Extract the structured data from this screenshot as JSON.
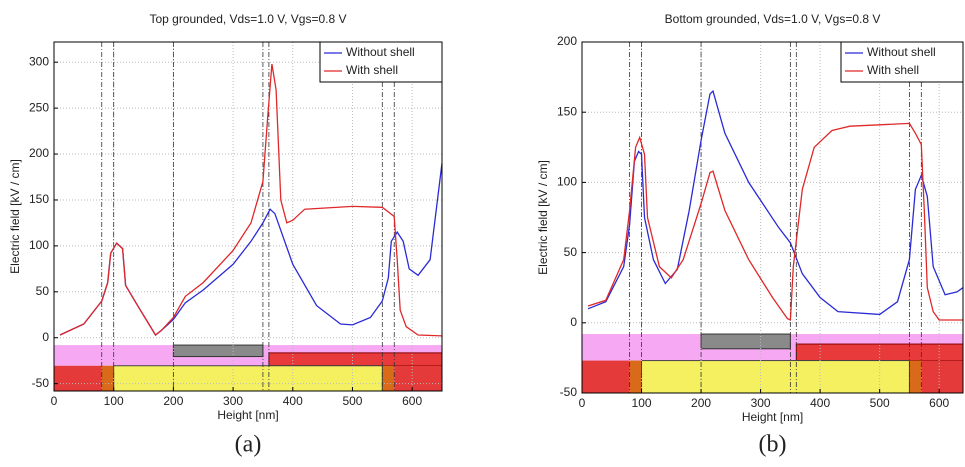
{
  "chart_data": [
    {
      "type": "line",
      "title": "Top grounded, Vds=1.0 V, Vgs=0.8 V",
      "panel_label": "(a)",
      "x_label": "Height [nm]",
      "y_label": "Electric field [kV / cm]",
      "xlim": [
        0,
        650
      ],
      "xticks": [
        0,
        100,
        200,
        300,
        400,
        500,
        600
      ],
      "ylim": [
        -58,
        322
      ],
      "yticks": [
        -50,
        0,
        50,
        100,
        150,
        200,
        250,
        300
      ],
      "grid": true,
      "legend": "upper right",
      "vlines": [
        80,
        100,
        200,
        350,
        360,
        550,
        570
      ],
      "series": [
        {
          "name": "Without shell",
          "color": "#2b2bd6",
          "x": [
            10,
            50,
            80,
            90,
            95,
            105,
            115,
            120,
            140,
            170,
            180,
            200,
            220,
            250,
            300,
            330,
            350,
            362,
            370,
            400,
            440,
            480,
            500,
            530,
            550,
            560,
            565,
            575,
            585,
            595,
            610,
            630,
            650
          ],
          "values": [
            3,
            15,
            40,
            60,
            92,
            103,
            97,
            57,
            35,
            3,
            8,
            20,
            38,
            52,
            80,
            105,
            125,
            140,
            135,
            80,
            35,
            15,
            14,
            22,
            40,
            65,
            105,
            115,
            105,
            75,
            68,
            85,
            190
          ]
        },
        {
          "name": "With shell",
          "color": "#e0282a",
          "x": [
            10,
            50,
            80,
            90,
            95,
            105,
            115,
            120,
            140,
            170,
            180,
            200,
            220,
            250,
            300,
            330,
            350,
            358,
            365,
            372,
            380,
            390,
            400,
            420,
            500,
            550,
            560,
            570,
            575,
            580,
            590,
            610,
            650
          ],
          "values": [
            3,
            15,
            40,
            60,
            92,
            103,
            97,
            57,
            35,
            3,
            8,
            22,
            45,
            60,
            95,
            125,
            170,
            240,
            298,
            270,
            150,
            125,
            128,
            140,
            143,
            142,
            137,
            132,
            85,
            30,
            12,
            3,
            2
          ]
        }
      ]
    },
    {
      "type": "line",
      "title": "Bottom grounded, Vds=1.0 V, Vgs=0.8 V",
      "panel_label": "(b)",
      "x_label": "Height [nm]",
      "y_label": "Electric field [kV / cm]",
      "xlim": [
        0,
        640
      ],
      "xticks": [
        0,
        100,
        200,
        300,
        400,
        500,
        600
      ],
      "ylim": [
        -50,
        200
      ],
      "yticks": [
        -50,
        0,
        50,
        100,
        150,
        200
      ],
      "grid": true,
      "legend": "upper right",
      "vlines": [
        80,
        100,
        200,
        350,
        360,
        550,
        570
      ],
      "series": [
        {
          "name": "Without shell",
          "color": "#2b2bd6",
          "x": [
            10,
            40,
            70,
            80,
            88,
            95,
            100,
            105,
            120,
            140,
            160,
            180,
            200,
            215,
            220,
            240,
            280,
            330,
            350,
            370,
            400,
            430,
            500,
            530,
            550,
            560,
            570,
            580,
            590,
            610,
            630,
            640
          ],
          "values": [
            10,
            15,
            40,
            70,
            115,
            122,
            120,
            75,
            45,
            28,
            38,
            80,
            130,
            163,
            165,
            135,
            100,
            68,
            57,
            35,
            18,
            8,
            6,
            15,
            45,
            95,
            105,
            90,
            40,
            20,
            22,
            25
          ]
        },
        {
          "name": "With shell",
          "color": "#e0282a",
          "x": [
            10,
            40,
            70,
            80,
            90,
            97,
            105,
            110,
            130,
            150,
            170,
            200,
            215,
            220,
            240,
            280,
            320,
            345,
            350,
            355,
            370,
            390,
            420,
            450,
            500,
            550,
            560,
            570,
            575,
            580,
            590,
            600,
            640
          ],
          "values": [
            12,
            16,
            45,
            80,
            125,
            132,
            120,
            75,
            40,
            32,
            45,
            85,
            107,
            108,
            80,
            45,
            18,
            3,
            2,
            40,
            95,
            125,
            137,
            140,
            141,
            142,
            135,
            127,
            80,
            25,
            8,
            2,
            2
          ]
        }
      ]
    }
  ]
}
